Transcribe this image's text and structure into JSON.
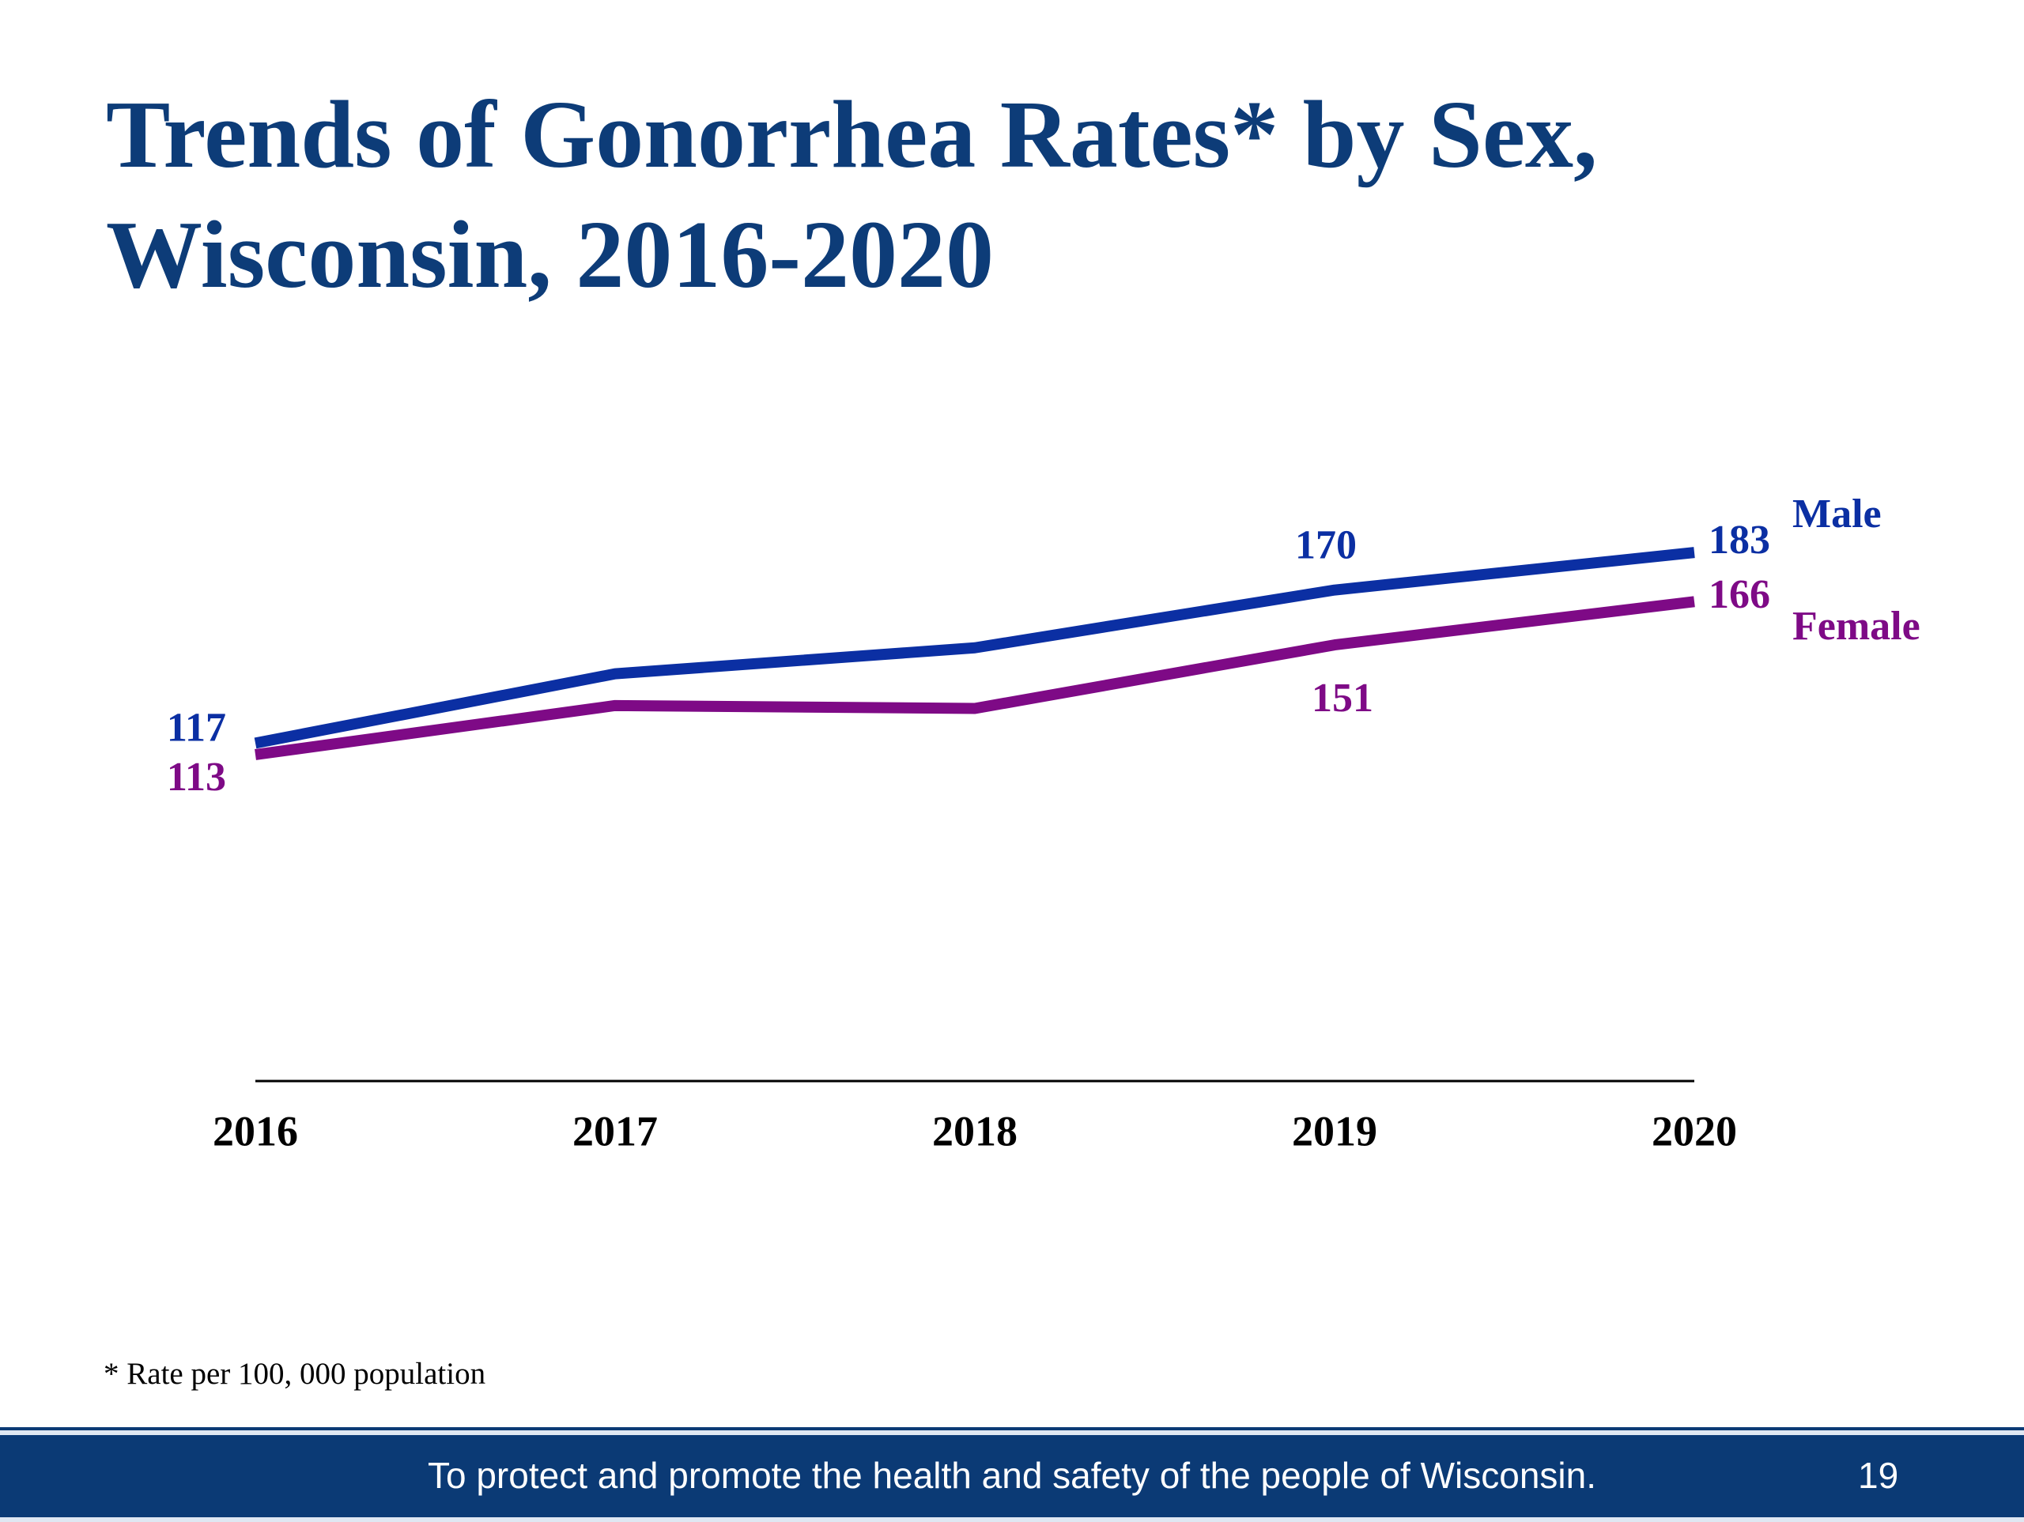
{
  "chart_data": {
    "type": "line",
    "title": "Trends of Gonorrhea Rates* by Sex, Wisconsin, 2016-2020",
    "categories": [
      "2016",
      "2017",
      "2018",
      "2019",
      "2020"
    ],
    "series": [
      {
        "name": "Male",
        "color": "#0b2fa3",
        "values": [
          117,
          141,
          150,
          170,
          183
        ],
        "value_labels": [
          "117",
          null,
          null,
          "170",
          "183"
        ]
      },
      {
        "name": "Female",
        "color": "#7e0a86",
        "values": [
          113,
          130,
          129,
          151,
          166
        ],
        "value_labels": [
          "113",
          null,
          null,
          "151",
          "166"
        ]
      }
    ],
    "ylim": [
      0,
      200
    ],
    "footnote": "* Rate per 100, 000 population"
  },
  "footer": {
    "text": "To protect and promote the health and safety of the people of Wisconsin.",
    "page": 19
  }
}
